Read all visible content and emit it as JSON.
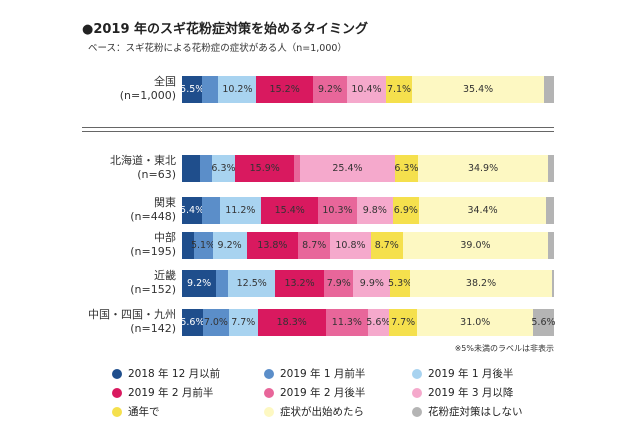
{
  "chart_data": {
    "type": "bar",
    "orientation": "horizontal",
    "stacked": true,
    "title": "●2019 年のスギ花粉症対策を始めるタイミング",
    "subtitle": "ベース：スギ花粉による花粉症の症状がある人（n=1,000）",
    "note": "※5%未満のラベルは非表示",
    "series": [
      {
        "name": "2018 年 12 月以前",
        "color": "#1f4e8c",
        "dark": true
      },
      {
        "name": "2019 年 1 月前半",
        "color": "#5b8ec9",
        "dark": false
      },
      {
        "name": "2019 年 1 月後半",
        "color": "#a8d3f0",
        "dark": false
      },
      {
        "name": "2019 年 2 月前半",
        "color": "#d9195f",
        "dark": false
      },
      {
        "name": "2019 年 2 月後半",
        "color": "#e8669a",
        "dark": false
      },
      {
        "name": "2019 年 3 月以降",
        "color": "#f5a9cc",
        "dark": false
      },
      {
        "name": "通年で",
        "color": "#f5e04d",
        "dark": false
      },
      {
        "name": "症状が出始めたら",
        "color": "#fdf8c2",
        "dark": false
      },
      {
        "name": "花粉症対策はしない",
        "color": "#b4b4b4",
        "dark": false
      }
    ],
    "rows": [
      {
        "label1": "全国",
        "label2": "(n=1,000)",
        "values": [
          5.5,
          4.3,
          10.2,
          15.2,
          9.2,
          10.4,
          7.1,
          35.4,
          2.7
        ],
        "labels": [
          "5.5%",
          "",
          "10.2%",
          "15.2%",
          "9.2%",
          "10.4%",
          "7.1%",
          "35.4%",
          ""
        ]
      },
      {
        "label1": "北海道・東北",
        "label2": "(n=63)",
        "values": [
          4.8,
          3.2,
          6.3,
          15.9,
          1.6,
          25.4,
          6.3,
          34.9,
          1.6
        ],
        "labels": [
          "",
          "",
          "6.3%",
          "15.9%",
          "",
          "25.4%",
          "6.3%",
          "34.9%",
          ""
        ]
      },
      {
        "label1": "関東",
        "label2": "(n=448)",
        "values": [
          5.4,
          4.7,
          11.2,
          15.4,
          10.3,
          9.8,
          6.9,
          34.4,
          2.0
        ],
        "labels": [
          "5.4%",
          "",
          "11.2%",
          "15.4%",
          "10.3%",
          "9.8%",
          "6.9%",
          "34.4%",
          ""
        ]
      },
      {
        "label1": "中部",
        "label2": "(n=195)",
        "values": [
          3.1,
          5.1,
          9.2,
          13.8,
          8.7,
          10.8,
          8.7,
          39.0,
          1.6
        ],
        "labels": [
          "",
          "5.1%",
          "9.2%",
          "13.8%",
          "8.7%",
          "10.8%",
          "8.7%",
          "39.0%",
          ""
        ]
      },
      {
        "label1": "近畿",
        "label2": "(n=152)",
        "values": [
          9.2,
          3.3,
          12.5,
          13.2,
          7.9,
          9.9,
          5.3,
          38.2,
          0.5
        ],
        "labels": [
          "9.2%",
          "",
          "12.5%",
          "13.2%",
          "7.9%",
          "9.9%",
          "5.3%",
          "38.2%",
          ""
        ]
      },
      {
        "label1": "中国・四国・九州",
        "label2": "(n=142)",
        "values": [
          5.6,
          7.0,
          7.7,
          18.3,
          11.3,
          5.6,
          7.7,
          31.0,
          5.6
        ],
        "labels": [
          "5.6%",
          "7.0%",
          "7.7%",
          "18.3%",
          "11.3%",
          "5.6%",
          "7.7%",
          "31.0%",
          "5.6%"
        ]
      }
    ],
    "xlim": [
      0,
      100
    ]
  }
}
